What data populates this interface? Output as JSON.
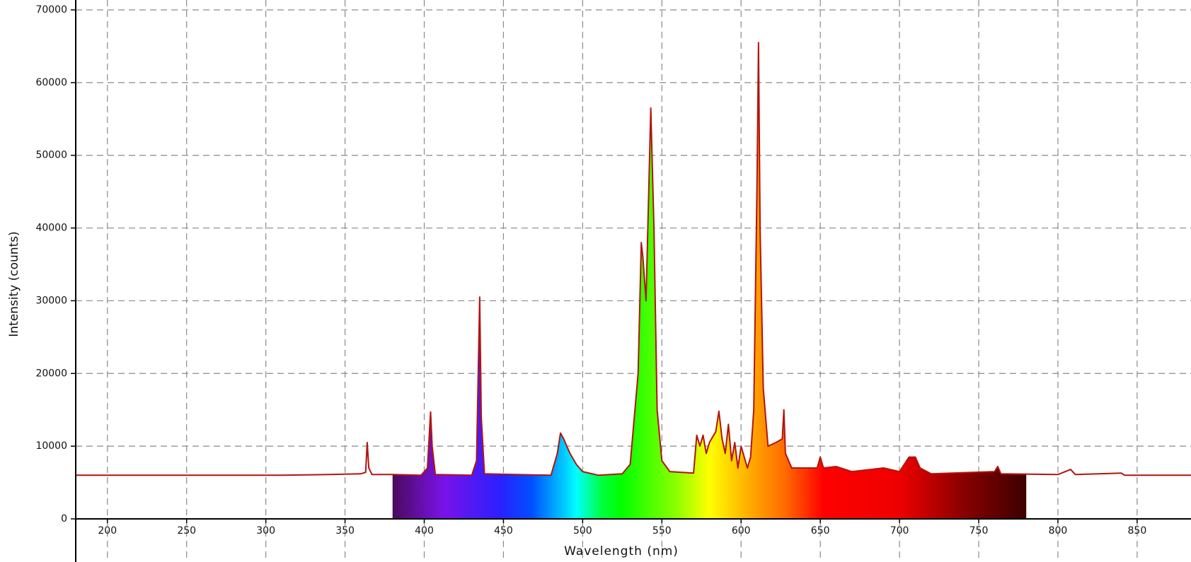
{
  "chart_data": {
    "type": "area",
    "x_label": "Wavelength (nm)",
    "y_label": "Intensity (counts)",
    "x": [
      180,
      310,
      340,
      360,
      363,
      364,
      365,
      367,
      380,
      398,
      402,
      404,
      405,
      407,
      430,
      433,
      435,
      436,
      438,
      480,
      484,
      486,
      488,
      492,
      496,
      500,
      510,
      525,
      530,
      535,
      537,
      538,
      540,
      543,
      545,
      547,
      550,
      555,
      570,
      572,
      574,
      576,
      578,
      580,
      584,
      586,
      588,
      590,
      592,
      594,
      596,
      598,
      600,
      604,
      606,
      608,
      610,
      611,
      612,
      614,
      617,
      622,
      626,
      627,
      628,
      632,
      648,
      650,
      652,
      660,
      670,
      690,
      700,
      706,
      710,
      713,
      720,
      760,
      762,
      764,
      800,
      808,
      811,
      840,
      842,
      884
    ],
    "values": [
      6000,
      6000,
      6100,
      6200,
      6400,
      10500,
      7000,
      6100,
      6100,
      6000,
      7000,
      14700,
      10000,
      6100,
      6000,
      8000,
      30500,
      14000,
      6200,
      6000,
      9000,
      11800,
      11000,
      9000,
      7500,
      6500,
      6000,
      6200,
      7500,
      20000,
      38000,
      36000,
      30000,
      56500,
      40000,
      15000,
      8000,
      6500,
      6300,
      11500,
      10000,
      11500,
      9000,
      10500,
      12000,
      14800,
      11000,
      9000,
      13000,
      8000,
      10500,
      7000,
      10000,
      7000,
      8500,
      15000,
      45000,
      65500,
      40000,
      18000,
      10000,
      10500,
      11000,
      15000,
      9000,
      7000,
      7000,
      8500,
      7000,
      7200,
      6500,
      7000,
      6500,
      8500,
      8500,
      7000,
      6200,
      6500,
      7200,
      6200,
      6100,
      6800,
      6100,
      6300,
      6000,
      6000
    ],
    "color": "#b3140f",
    "spectrum_fill": [
      380,
      780
    ],
    "xlim": [
      180,
      884
    ],
    "ylim": [
      0,
      70000
    ],
    "xticks": [
      200,
      250,
      300,
      350,
      400,
      450,
      500,
      550,
      600,
      650,
      700,
      750,
      800,
      850
    ],
    "yticks": [
      0,
      10000,
      20000,
      30000,
      40000,
      50000,
      60000,
      70000
    ],
    "grid": true
  }
}
